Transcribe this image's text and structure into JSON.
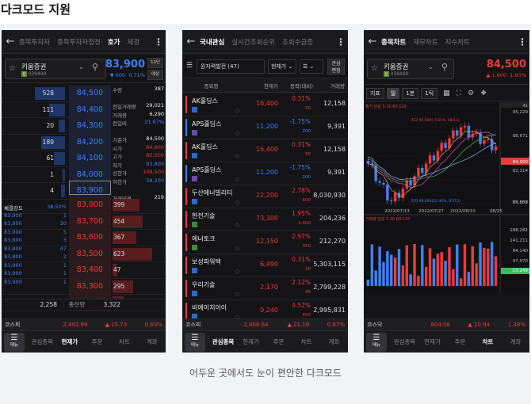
{
  "page": {
    "title": "다크모드 지원",
    "caption": "어두운 곳에서도 눈이 편안한 다크모드"
  },
  "colors": {
    "up": "#ee3a3a",
    "down": "#3e82f3",
    "bg": "#141416"
  },
  "phone1": {
    "tabs": [
      "종목투자자",
      "종목투자자점정",
      "호가",
      "체결"
    ],
    "active_tab": 2,
    "stock": {
      "name": "키움증권",
      "code": "039490",
      "price": "83,900",
      "change": "▼ 600",
      "rate": "0.71%"
    },
    "side_buttons": [
      "10단",
      "예상"
    ],
    "asks": [
      {
        "vol": "528",
        "price": "84,500"
      },
      {
        "vol": "111",
        "price": "84,400"
      },
      {
        "vol": "20",
        "price": "84,300"
      },
      {
        "vol": "189",
        "price": "84,200"
      },
      {
        "vol": "61",
        "price": "84,100"
      },
      {
        "vol": "1",
        "price": "84,000"
      },
      {
        "vol": "4",
        "price": "83,900"
      }
    ],
    "info": [
      {
        "k": "수량",
        "v": "387",
        "c": "white"
      },
      {
        "k": "",
        "v": "",
        "c": "white"
      },
      {
        "k": "전일거래량",
        "v": "29,021",
        "c": "white"
      },
      {
        "k": "거래량",
        "v": "6,290",
        "c": "white"
      },
      {
        "k": "전일비",
        "v": "21.67%",
        "c": "blue"
      },
      {
        "k": "",
        "v": "",
        "c": "white"
      },
      {
        "k": "기준가",
        "v": "84,500",
        "c": "white"
      },
      {
        "k": "시가",
        "v": "84,800",
        "c": "red"
      },
      {
        "k": "고가",
        "v": "85,000",
        "c": "red"
      },
      {
        "k": "저가",
        "v": "83,800",
        "c": "blue"
      },
      {
        "k": "상한가",
        "v": "109,500",
        "c": "red"
      },
      {
        "k": "하한가",
        "v": "59,200",
        "c": "blue"
      },
      {
        "k": "",
        "v": "",
        "c": "white"
      },
      {
        "k": "거래비용",
        "v": "219",
        "c": "white"
      }
    ],
    "bids": [
      {
        "price": "83,800",
        "vol": "399"
      },
      {
        "price": "83,700",
        "vol": "454"
      },
      {
        "price": "83,600",
        "vol": "367"
      },
      {
        "price": "83,500",
        "vol": "623"
      },
      {
        "price": "83,400",
        "vol": "47"
      },
      {
        "price": "83,300",
        "vol": "295"
      },
      {
        "price": "83,200",
        "vol": "137"
      }
    ],
    "exec_header": {
      "k": "체결강도",
      "v": "38.50%"
    },
    "exec": [
      {
        "p": "83,900",
        "q": "1"
      },
      {
        "p": "83,800",
        "q": "20"
      },
      {
        "p": "83,900",
        "q": "5"
      },
      {
        "p": "83,800",
        "q": "3"
      },
      {
        "p": "83,800",
        "q": "47"
      },
      {
        "p": "83,800",
        "q": "2"
      },
      {
        "p": "83,900",
        "q": "1"
      },
      {
        "p": "83,900",
        "q": "1"
      },
      {
        "p": "83,900",
        "q": "1"
      }
    ],
    "totals": {
      "left": "2,258",
      "label": "총잔량",
      "right": "3,322"
    },
    "index": {
      "name": "코스피",
      "value": "2,492.99",
      "change": "▲ 15.73",
      "rate": "0.63%"
    },
    "nav": [
      "관심종목",
      "현재가",
      "주문",
      "차트",
      "계좌"
    ],
    "nav_active": 1
  },
  "phone2": {
    "tabs": [
      "국내관심",
      "실시간조회순위",
      "조회수급증"
    ],
    "active_tab": 0,
    "group": "원자력발전 (47)",
    "sort": "현재가",
    "edit": [
      "관심",
      "편집"
    ],
    "columns": [
      "종목명",
      "현재가",
      "등락(대비)",
      "거래량"
    ],
    "rows": [
      {
        "name": "AK홀딩스",
        "price": "16,400",
        "rate": "0.31%",
        "diff": "50",
        "vol": "12,158",
        "dir": "up",
        "badge": ""
      },
      {
        "name": "APS홀딩스",
        "price": "11,200",
        "rate": "-1.75%",
        "diff": "200",
        "vol": "9,391",
        "dir": "down",
        "badge": "purple"
      },
      {
        "name": "AK홀딩스",
        "price": "16,400",
        "rate": "0.31%",
        "diff": "50",
        "vol": "12,158",
        "dir": "up",
        "badge": ""
      },
      {
        "name": "APS홀딩스",
        "price": "11,200",
        "rate": "-1.75%",
        "diff": "200",
        "vol": "9,391",
        "dir": "down",
        "badge": "purple"
      },
      {
        "name": "두산에너빌리티",
        "price": "22,200",
        "rate": "2.78%",
        "diff": "600",
        "vol": "8,030,930",
        "dir": "up",
        "badge": ""
      },
      {
        "name": "한전기술",
        "price": "73,300",
        "rate": "1.95%",
        "diff": "1,400",
        "vol": "204,236",
        "dir": "up",
        "badge": "green"
      },
      {
        "name": "에너토크",
        "price": "12,150",
        "rate": "2.97%",
        "diff": "350",
        "vol": "212,270",
        "dir": "up",
        "badge": "green"
      },
      {
        "name": "보성파워텍",
        "price": "6,490",
        "rate": "0.31%",
        "diff": "20",
        "vol": "5,303,115",
        "dir": "up",
        "badge": ""
      },
      {
        "name": "우리기술",
        "price": "2,170",
        "rate": "2.12%",
        "diff": "45",
        "vol": "2,799,228",
        "dir": "up",
        "badge": ""
      },
      {
        "name": "비에이치아이",
        "price": "9,240",
        "rate": "4.52%",
        "diff": "400",
        "vol": "2,995,831",
        "dir": "up",
        "badge": ""
      }
    ],
    "index": {
      "name": "코스피",
      "value": "2,468.64",
      "change": "▲ 21.19",
      "rate": "0.87%"
    },
    "nav": [
      "관심종목",
      "현재가",
      "주문",
      "차트",
      "계좌"
    ],
    "nav_active": 0
  },
  "phone3": {
    "tabs": [
      "종목차트",
      "재무차트",
      "지수차트"
    ],
    "active_tab": 0,
    "stock": {
      "name": "키움증권",
      "code": "039490",
      "price": "84,500",
      "change": "▲ 1,600",
      "rate": "1.93%"
    },
    "tools": [
      "지표",
      "일",
      "1분",
      "1틱"
    ],
    "tool_active": 1,
    "legend_price": "종가 단순 5  20  60  120",
    "legend_volume": "거래량 단순 5  20  60  120",
    "high_label": "최고 91,500(-7.65%, 08/12)",
    "low_label": "최저 69,000(22.46%, 07/15)",
    "dates": [
      "2022/07/13",
      "2022/07/27",
      "2022/08/10",
      "08/25"
    ],
    "price_axis": [
      "95,229",
      "88,671",
      "84,500",
      "82,114",
      "75,557",
      "69,000"
    ],
    "volume_axis": [
      "188,281",
      "141,211",
      "94,140",
      "47,070",
      "13,249"
    ],
    "box_value": "41",
    "index": {
      "name": "코스닥",
      "value": "804.08",
      "change": "▲ 10.94",
      "rate": "1.38%"
    },
    "nav": [
      "관심종목",
      "현재가",
      "주문",
      "차트",
      "계좌"
    ],
    "nav_active": 3
  },
  "chart_data": {
    "type": "candlestick",
    "xlabel": "",
    "ylabel": "",
    "x": [
      "2022/07/13",
      "2022/07/27",
      "2022/08/10",
      "08/25"
    ],
    "ylim": [
      69000,
      95229
    ],
    "high": 91500,
    "low": 69000,
    "last": 84500
  }
}
